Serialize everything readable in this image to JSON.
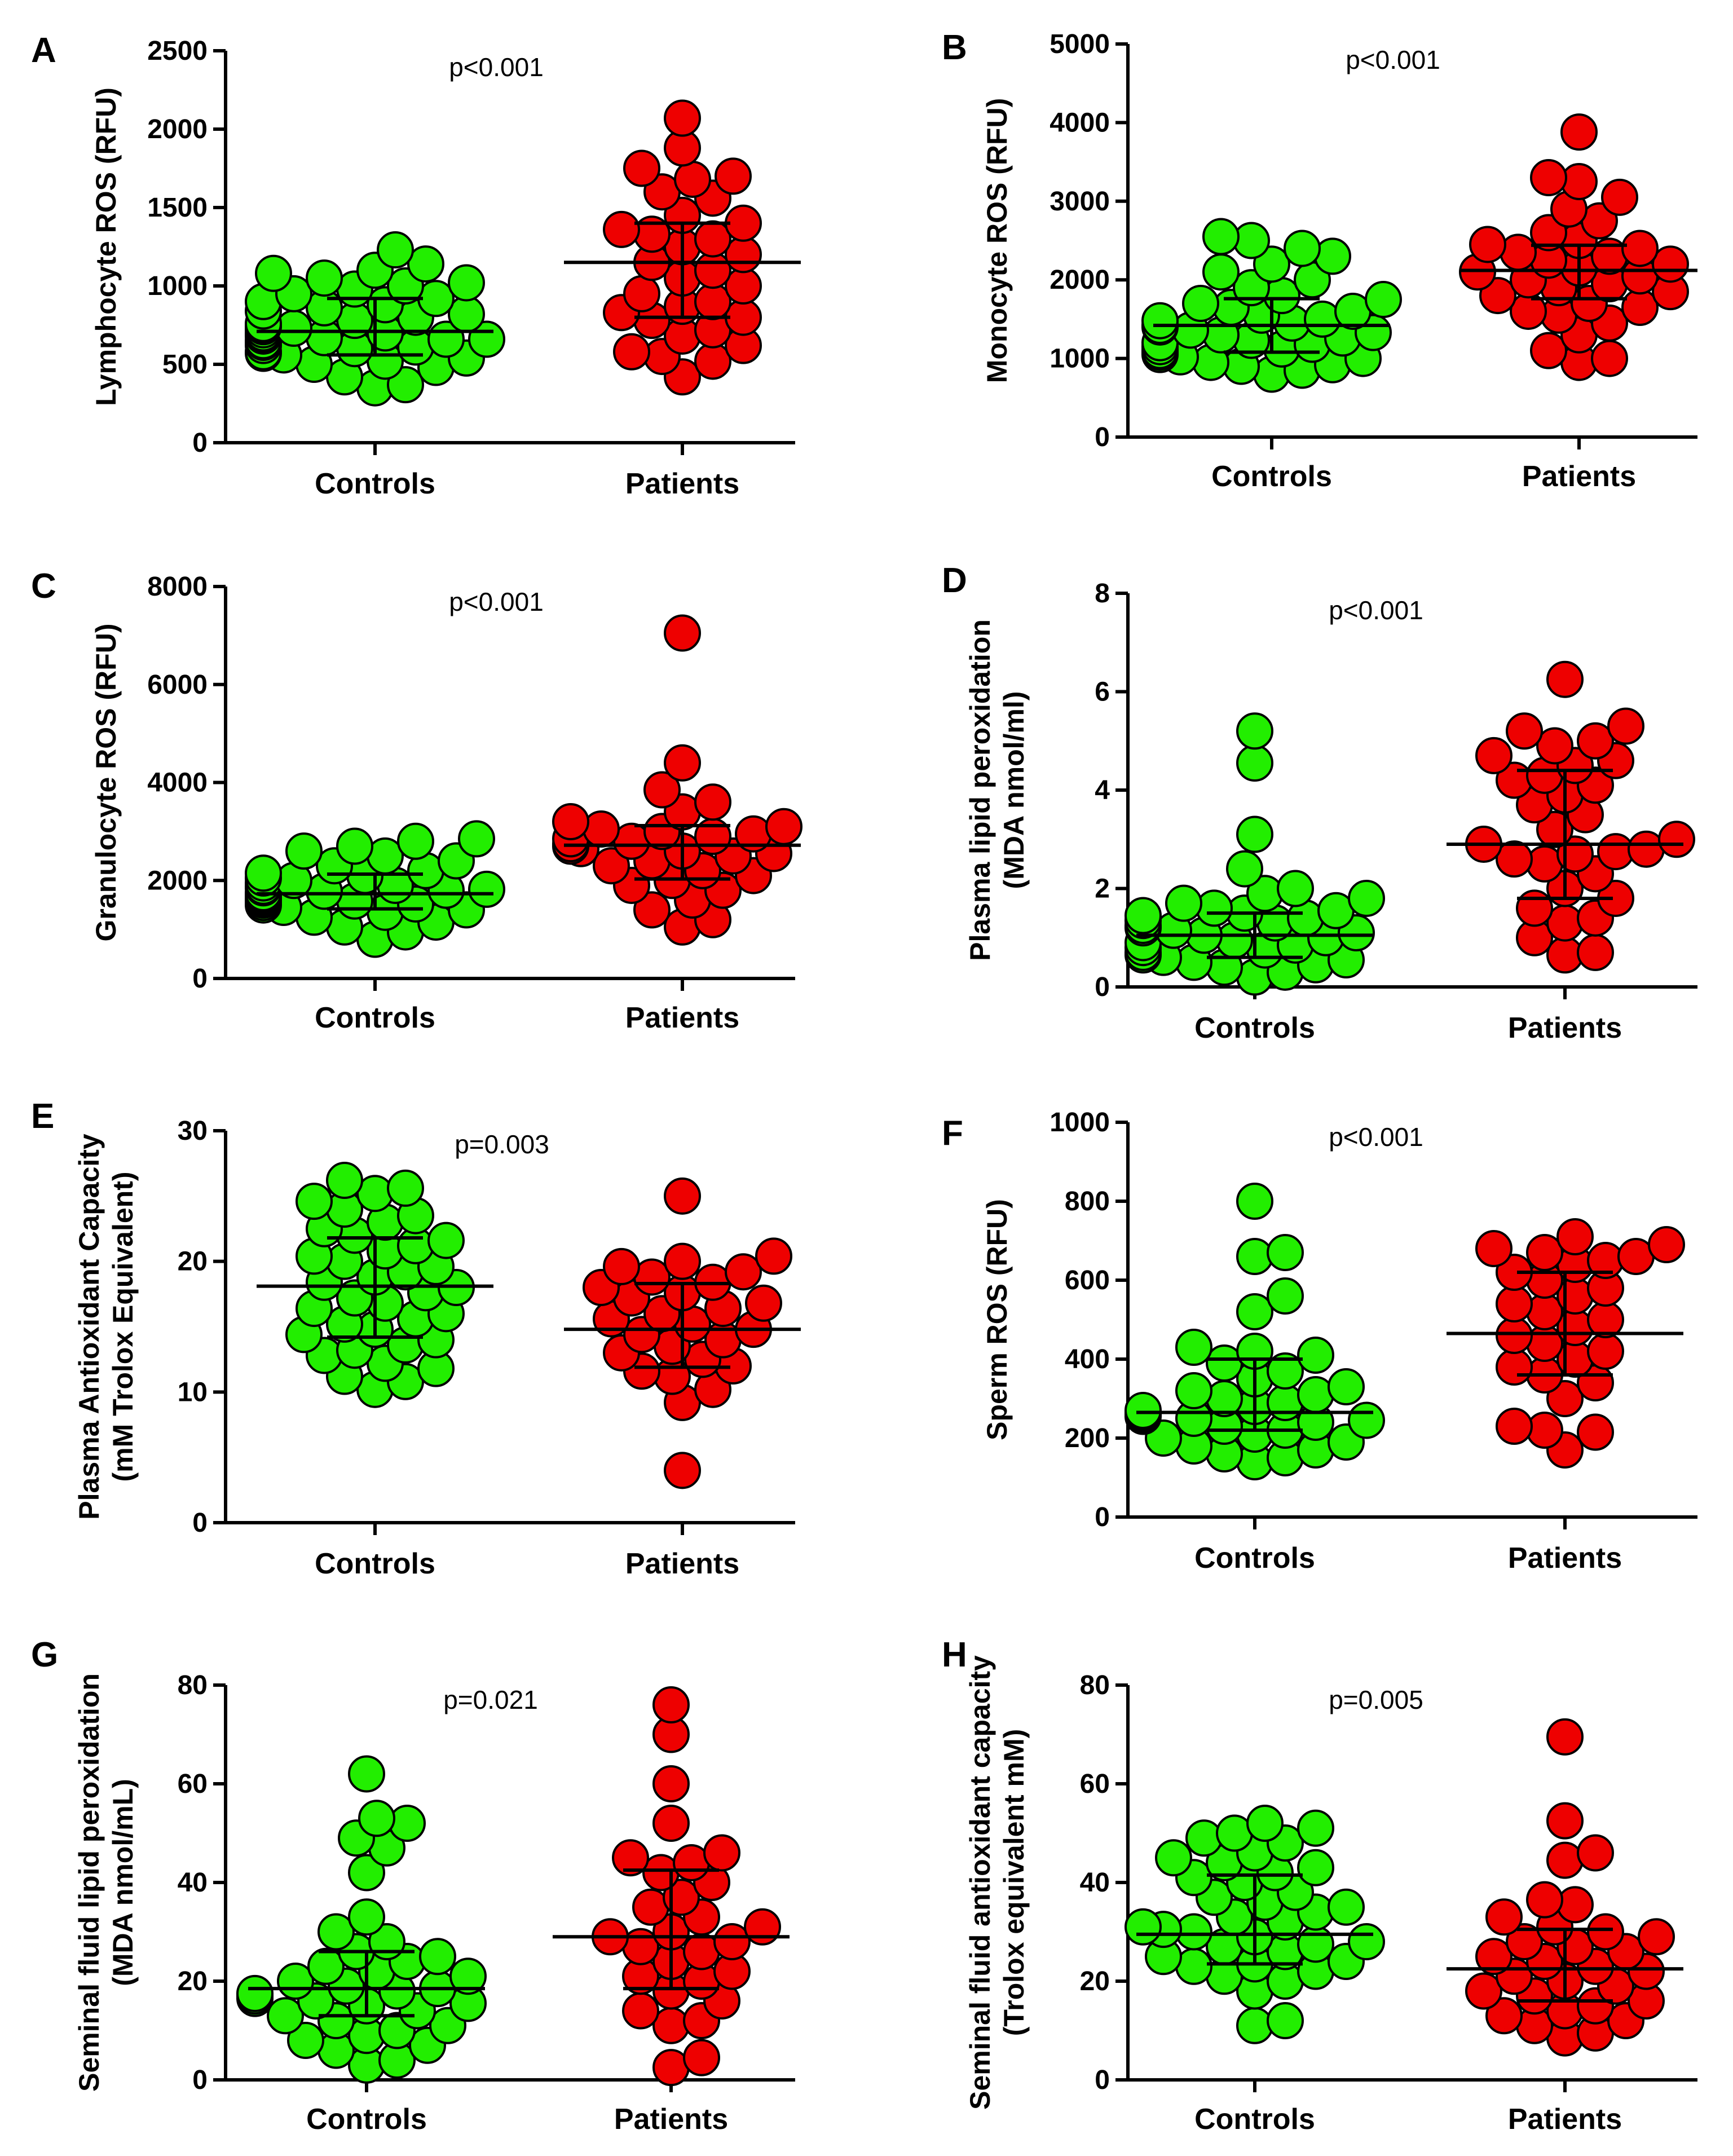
{
  "figure": {
    "group_colors": {
      "Controls": "#22ee00",
      "Patients": "#ee0000"
    }
  },
  "chart_data": [
    {
      "panel": "A",
      "type": "scatter",
      "p_value": "p<0.001",
      "ylabel": [
        "Lymphocyte ROS (RFU)"
      ],
      "ylim": [
        0,
        2500
      ],
      "yticks": [
        0,
        500,
        1000,
        1500,
        2000,
        2500
      ],
      "categories": [
        "Controls",
        "Patients"
      ],
      "series": [
        {
          "name": "Controls",
          "mean": 710,
          "sd_low": 560,
          "sd_high": 920,
          "values": [
            350,
            370,
            420,
            480,
            500,
            520,
            540,
            560,
            570,
            580,
            600,
            610,
            620,
            640,
            650,
            660,
            660,
            670,
            680,
            690,
            700,
            700,
            720,
            730,
            740,
            750,
            760,
            780,
            800,
            820,
            840,
            860,
            880,
            900,
            920,
            950,
            980,
            1000,
            1020,
            1050,
            1080,
            1100,
            1140,
            1230
          ]
        },
        {
          "name": "Patients",
          "mean": 1150,
          "sd_low": 800,
          "sd_high": 1400,
          "values": [
            420,
            520,
            550,
            580,
            620,
            680,
            720,
            780,
            800,
            830,
            870,
            900,
            950,
            1000,
            1050,
            1100,
            1150,
            1200,
            1250,
            1300,
            1330,
            1360,
            1400,
            1450,
            1560,
            1600,
            1680,
            1700,
            1750,
            1880,
            2070
          ]
        }
      ]
    },
    {
      "panel": "B",
      "type": "scatter",
      "p_value": "p<0.001",
      "ylabel": [
        "Monocyte ROS (RFU)"
      ],
      "ylim": [
        0,
        5000
      ],
      "yticks": [
        0,
        1000,
        2000,
        3000,
        4000,
        5000
      ],
      "categories": [
        "Controls",
        "Patients"
      ],
      "series": [
        {
          "name": "Controls",
          "mean": 1420,
          "sd_low": 1080,
          "sd_high": 1760,
          "values": [
            800,
            850,
            900,
            920,
            950,
            1000,
            1020,
            1050,
            1080,
            1100,
            1120,
            1150,
            1180,
            1200,
            1230,
            1260,
            1300,
            1330,
            1360,
            1400,
            1420,
            1450,
            1480,
            1500,
            1550,
            1600,
            1650,
            1700,
            1750,
            1800,
            1900,
            2000,
            2100,
            2200,
            2300,
            2400,
            2500,
            2550
          ]
        },
        {
          "name": "Patients",
          "mean": 2120,
          "sd_low": 1760,
          "sd_high": 2440,
          "values": [
            950,
            1000,
            1100,
            1300,
            1450,
            1550,
            1600,
            1650,
            1700,
            1800,
            1850,
            1900,
            1950,
            2000,
            2050,
            2100,
            2150,
            2200,
            2250,
            2300,
            2350,
            2400,
            2450,
            2500,
            2600,
            2750,
            2900,
            3050,
            3250,
            3300,
            3880
          ]
        }
      ]
    },
    {
      "panel": "C",
      "type": "scatter",
      "p_value": "p<0.001",
      "ylabel": [
        "Granulocyte ROS (RFU)"
      ],
      "ylim": [
        0,
        8000
      ],
      "yticks": [
        0,
        2000,
        4000,
        6000,
        8000
      ],
      "categories": [
        "Controls",
        "Patients"
      ],
      "series": [
        {
          "name": "Controls",
          "mean": 1730,
          "sd_low": 1420,
          "sd_high": 2130,
          "values": [
            800,
            950,
            1050,
            1150,
            1250,
            1350,
            1400,
            1450,
            1500,
            1520,
            1550,
            1580,
            1600,
            1620,
            1650,
            1680,
            1700,
            1720,
            1750,
            1780,
            1800,
            1820,
            1850,
            1880,
            1900,
            1950,
            2000,
            2050,
            2100,
            2150,
            2200,
            2300,
            2400,
            2500,
            2600,
            2700,
            2800,
            2850
          ]
        },
        {
          "name": "Patients",
          "mean": 2720,
          "sd_low": 2030,
          "sd_high": 3120,
          "values": [
            1050,
            1200,
            1400,
            1600,
            1800,
            1900,
            2000,
            2100,
            2200,
            2300,
            2400,
            2500,
            2550,
            2600,
            2650,
            2700,
            2750,
            2800,
            2850,
            2900,
            2950,
            3000,
            3050,
            3100,
            3200,
            3400,
            3600,
            3850,
            4400,
            7050
          ]
        }
      ]
    },
    {
      "panel": "D",
      "type": "scatter",
      "p_value": "p<0.001",
      "ylabel": [
        "Plasma lipid peroxidation",
        "(MDA nmol/ml)"
      ],
      "ylim": [
        0,
        8
      ],
      "yticks": [
        0,
        2,
        4,
        6,
        8
      ],
      "categories": [
        "Controls",
        "Patients"
      ],
      "series": [
        {
          "name": "Controls",
          "mean": 1.05,
          "sd_low": 0.6,
          "sd_high": 1.5,
          "values": [
            0.2,
            0.3,
            0.4,
            0.45,
            0.5,
            0.55,
            0.6,
            0.65,
            0.7,
            0.75,
            0.8,
            0.85,
            0.9,
            0.95,
            1.0,
            1.05,
            1.1,
            1.15,
            1.2,
            1.25,
            1.3,
            1.35,
            1.4,
            1.45,
            1.5,
            1.55,
            1.6,
            1.7,
            1.8,
            1.9,
            2.0,
            2.4,
            3.1,
            4.55,
            5.2
          ]
        },
        {
          "name": "Patients",
          "mean": 2.9,
          "sd_low": 1.8,
          "sd_high": 4.4,
          "values": [
            0.65,
            0.7,
            1.0,
            1.3,
            1.4,
            1.6,
            1.8,
            2.0,
            2.3,
            2.5,
            2.6,
            2.7,
            2.75,
            2.8,
            2.9,
            3.0,
            3.2,
            3.5,
            3.7,
            3.9,
            4.1,
            4.2,
            4.3,
            4.5,
            4.6,
            4.7,
            4.9,
            5.0,
            5.2,
            5.3,
            6.25
          ]
        }
      ]
    },
    {
      "panel": "E",
      "type": "scatter",
      "p_value": "p=0.003",
      "ylabel": [
        "Plasma Antioxidant Capacity",
        "(mM Trolox Equivalent)"
      ],
      "ylim": [
        0,
        30
      ],
      "yticks": [
        0,
        10,
        20,
        30
      ],
      "categories": [
        "Controls",
        "Patients"
      ],
      "series": [
        {
          "name": "Controls",
          "mean": 18.1,
          "sd_low": 14.2,
          "sd_high": 21.8,
          "values": [
            10.2,
            10.8,
            11.2,
            11.8,
            12.2,
            12.8,
            13.2,
            13.6,
            14.0,
            14.4,
            14.8,
            15.2,
            15.6,
            16.0,
            16.4,
            16.8,
            17.2,
            17.6,
            18.0,
            18.4,
            18.8,
            19.2,
            19.6,
            20.0,
            20.4,
            20.8,
            21.2,
            21.6,
            22.0,
            22.5,
            23.0,
            23.5,
            24.0,
            24.6,
            25.2,
            25.6,
            26.2
          ]
        },
        {
          "name": "Patients",
          "mean": 14.8,
          "sd_low": 11.9,
          "sd_high": 18.3,
          "values": [
            4.0,
            9.2,
            10.2,
            11.2,
            11.6,
            12.0,
            12.5,
            13.0,
            13.5,
            14.0,
            14.4,
            14.8,
            15.2,
            15.6,
            16.0,
            16.4,
            16.8,
            17.2,
            17.6,
            18.0,
            18.4,
            18.8,
            19.2,
            19.6,
            20.0,
            20.4,
            25.0
          ]
        }
      ]
    },
    {
      "panel": "F",
      "type": "scatter",
      "p_value": "p<0.001",
      "ylabel": [
        "Sperm ROS (RFU)"
      ],
      "ylim": [
        0,
        1000
      ],
      "yticks": [
        0,
        200,
        400,
        600,
        800,
        1000
      ],
      "categories": [
        "Controls",
        "Patients"
      ],
      "series": [
        {
          "name": "Controls",
          "mean": 265,
          "sd_low": 220,
          "sd_high": 400,
          "values": [
            140,
            150,
            160,
            170,
            180,
            190,
            200,
            210,
            220,
            230,
            240,
            245,
            250,
            255,
            260,
            265,
            270,
            280,
            290,
            300,
            310,
            320,
            330,
            350,
            370,
            390,
            410,
            420,
            430,
            520,
            560,
            660,
            670,
            800
          ]
        },
        {
          "name": "Patients",
          "mean": 465,
          "sd_low": 360,
          "sd_high": 620,
          "values": [
            170,
            215,
            220,
            230,
            300,
            340,
            360,
            380,
            400,
            420,
            440,
            460,
            480,
            500,
            520,
            540,
            560,
            580,
            600,
            620,
            640,
            650,
            660,
            670,
            680,
            690,
            710
          ]
        }
      ]
    },
    {
      "panel": "G",
      "type": "scatter",
      "p_value": "p=0.021",
      "ylabel": [
        "Seminal fluid lipid peroxidation",
        "(MDA nmol/mL)"
      ],
      "ylim": [
        0,
        80
      ],
      "yticks": [
        0,
        20,
        40,
        60,
        80
      ],
      "categories": [
        "Controls",
        "Patients"
      ],
      "series": [
        {
          "name": "Controls",
          "mean": 18.5,
          "sd_low": 13,
          "sd_high": 26,
          "values": [
            3,
            4,
            6,
            7,
            8,
            9,
            10,
            11,
            12,
            13,
            14,
            15,
            15.5,
            16,
            16.5,
            17,
            17.5,
            18,
            18.5,
            19,
            20,
            21,
            22,
            23,
            24,
            25,
            26,
            28,
            30,
            33,
            42,
            47,
            49,
            52,
            53,
            62
          ]
        },
        {
          "name": "Patients",
          "mean": 29,
          "sd_low": 18.5,
          "sd_high": 42.5,
          "values": [
            2.5,
            4.5,
            11,
            12,
            14,
            16,
            18,
            20,
            21,
            22,
            24,
            26,
            27,
            28,
            29,
            30,
            31,
            33,
            35,
            37,
            40,
            42,
            44,
            45,
            46,
            52,
            60,
            70,
            76
          ]
        }
      ]
    },
    {
      "panel": "H",
      "type": "scatter",
      "p_value": "p=0.005",
      "ylabel": [
        "Seminal fluid antioxidant capacity",
        "(Trolox equivalent mM)"
      ],
      "ylim": [
        0,
        80
      ],
      "yticks": [
        0,
        20,
        40,
        60,
        80
      ],
      "categories": [
        "Controls",
        "Patients"
      ],
      "series": [
        {
          "name": "Controls",
          "mean": 29.5,
          "sd_low": 23.5,
          "sd_high": 41.5,
          "values": [
            11,
            12,
            18,
            20,
            21,
            22,
            23,
            23.5,
            24,
            25,
            26,
            27,
            27.5,
            28,
            29,
            30,
            30.5,
            31,
            32,
            33,
            34,
            35,
            36,
            37,
            38,
            40,
            41,
            42,
            43,
            44,
            45,
            46,
            48,
            49,
            50,
            51,
            52
          ]
        },
        {
          "name": "Patients",
          "mean": 22.5,
          "sd_low": 16,
          "sd_high": 30.5,
          "values": [
            8.5,
            9.5,
            11,
            12,
            13,
            14,
            15,
            16,
            17,
            18,
            19,
            20,
            21,
            22,
            23,
            24,
            25,
            26,
            27,
            28,
            29,
            30,
            31,
            33,
            35.5,
            36.5,
            44.5,
            46,
            52.5,
            69.5
          ]
        }
      ]
    }
  ]
}
